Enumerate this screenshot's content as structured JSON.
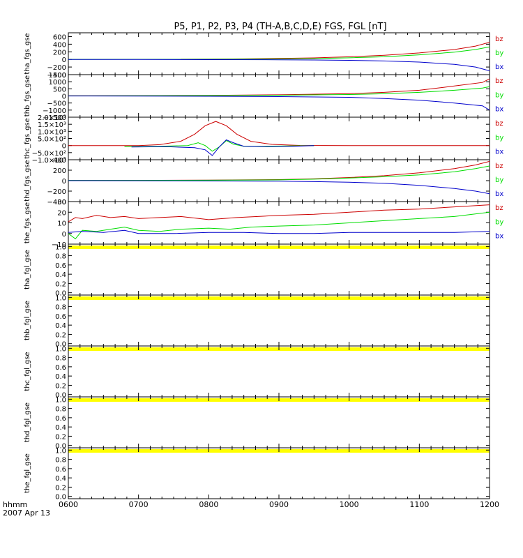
{
  "title": "P5, P1, P2, P3, P4 (TH-A,B,C,D,E) FGS, FGL [nT]",
  "footer": {
    "time_label": "hhmm",
    "date_label": "2007 Apr 13"
  },
  "colors": {
    "bx": "#0000cc",
    "by": "#00dd00",
    "bz": "#cc0000",
    "no_data": "#ffff00",
    "axis": "#000000"
  },
  "chart_data": {
    "type": "line",
    "x_axis": {
      "tick_labels": [
        "0600",
        "0700",
        "0800",
        "0900",
        "1000",
        "1100",
        "1200"
      ],
      "tick_hours": [
        6,
        7,
        8,
        9,
        10,
        11,
        12
      ],
      "range_hours": [
        6,
        12
      ]
    },
    "panels": [
      {
        "ylabel": "tha_fgs_gse",
        "ylim": [
          -400,
          700
        ],
        "tick_values": [
          -400,
          -200,
          0,
          200,
          400,
          600
        ],
        "tick_labels": [
          "−400",
          "−200",
          "0",
          "200",
          "400",
          "600"
        ],
        "series": [
          {
            "name": "bz",
            "color": "#cc0000",
            "x": [
              7.6,
              8,
              8.5,
              9,
              9.5,
              10,
              10.5,
              11,
              11.5,
              11.8,
              12
            ],
            "y": [
              5,
              8,
              15,
              25,
              40,
              70,
              110,
              170,
              260,
              350,
              450
            ]
          },
          {
            "name": "by",
            "color": "#00dd00",
            "x": [
              6,
              7,
              8,
              9,
              9.5,
              10,
              10.5,
              11,
              11.5,
              11.8,
              12
            ],
            "y": [
              2,
              4,
              6,
              12,
              22,
              42,
              70,
              120,
              190,
              260,
              330
            ]
          },
          {
            "name": "bx",
            "color": "#0000cc",
            "x": [
              6,
              7,
              8,
              9,
              9.5,
              10,
              10.5,
              11,
              11.5,
              11.8,
              12
            ],
            "y": [
              0,
              -2,
              -5,
              -10,
              -15,
              -25,
              -40,
              -70,
              -130,
              -200,
              -300
            ]
          }
        ]
      },
      {
        "ylabel": "thb_fgs_gse",
        "ylim": [
          -1500,
          1500
        ],
        "tick_values": [
          -1500,
          -1000,
          -500,
          0,
          500,
          1000,
          1500
        ],
        "tick_labels": [
          "−1500",
          "−1000",
          "−500",
          "0",
          "500",
          "1000",
          "1500"
        ],
        "series": [
          {
            "name": "bz",
            "color": "#cc0000",
            "x": [
              6,
              7,
              8,
              9,
              10,
              10.5,
              11,
              11.5,
              11.9,
              12
            ],
            "y": [
              10,
              20,
              40,
              80,
              160,
              250,
              400,
              700,
              950,
              1200
            ]
          },
          {
            "name": "by",
            "color": "#00dd00",
            "x": [
              6,
              7,
              8,
              9,
              10,
              10.5,
              11,
              11.5,
              11.9,
              12
            ],
            "y": [
              5,
              10,
              25,
              50,
              100,
              150,
              250,
              400,
              550,
              650
            ]
          },
          {
            "name": "bx",
            "color": "#0000cc",
            "x": [
              6,
              7,
              8,
              9,
              10,
              10.5,
              11,
              11.5,
              11.9,
              12
            ],
            "y": [
              -5,
              -10,
              -25,
              -50,
              -100,
              -180,
              -300,
              -500,
              -700,
              -1000
            ]
          }
        ]
      },
      {
        "ylabel": "thc_fgs_gse",
        "ylim": [
          -1000,
          2000
        ],
        "tick_values": [
          -1000,
          -500,
          0,
          500,
          1000,
          1500,
          2000
        ],
        "tick_labels": [
          "−1.0×10³",
          "−5.0×10²",
          "0",
          "5.0×10²",
          "1.0×10³",
          "1.5×10³",
          "2.0×10³"
        ],
        "series": [
          {
            "name": "bz",
            "color": "#cc0000",
            "x": [
              6,
              7,
              7.3,
              7.6,
              7.8,
              7.95,
              8.1,
              8.25,
              8.4,
              8.6,
              8.9,
              9.3,
              10,
              11,
              12
            ],
            "y": [
              0,
              0,
              60,
              300,
              800,
              1400,
              1700,
              1400,
              800,
              300,
              80,
              10,
              0,
              0,
              0
            ]
          },
          {
            "name": "by",
            "color": "#00dd00",
            "x": [
              6.8,
              7.3,
              7.7,
              7.85,
              7.95,
              8.05,
              8.15,
              8.25,
              8.35,
              8.5,
              8.8,
              9.2,
              9.5
            ],
            "y": [
              -80,
              -50,
              0,
              200,
              0,
              -400,
              -100,
              350,
              100,
              -50,
              -50,
              -20,
              0
            ]
          },
          {
            "name": "bx",
            "color": "#0000cc",
            "x": [
              6.9,
              7.4,
              7.8,
              7.95,
              8.05,
              8.15,
              8.25,
              8.35,
              8.5,
              8.8,
              9.2,
              9.5
            ],
            "y": [
              -100,
              -80,
              -150,
              -300,
              -700,
              -100,
              400,
              200,
              -50,
              -80,
              -50,
              0
            ]
          }
        ]
      },
      {
        "ylabel": "thd_fgs_gse",
        "ylim": [
          -400,
          400
        ],
        "tick_values": [
          -400,
          -200,
          0,
          200,
          400
        ],
        "tick_labels": [
          "−400",
          "−200",
          "0",
          "200",
          "400"
        ],
        "series": [
          {
            "name": "bz",
            "color": "#cc0000",
            "x": [
              6,
              7,
              8,
              9,
              9.5,
              10,
              10.5,
              11,
              11.5,
              11.8,
              12
            ],
            "y": [
              5,
              5,
              10,
              20,
              35,
              60,
              95,
              150,
              230,
              300,
              370
            ]
          },
          {
            "name": "by",
            "color": "#00dd00",
            "x": [
              6,
              7,
              8,
              9,
              9.5,
              10,
              10.5,
              11,
              11.5,
              11.8,
              12
            ],
            "y": [
              5,
              5,
              8,
              15,
              28,
              50,
              75,
              110,
              170,
              230,
              280
            ]
          },
          {
            "name": "bx",
            "color": "#0000cc",
            "x": [
              6,
              7,
              8,
              9,
              9.5,
              10,
              10.5,
              11,
              11.5,
              11.8,
              12
            ],
            "y": [
              0,
              -2,
              -5,
              -10,
              -18,
              -30,
              -50,
              -90,
              -150,
              -200,
              -250
            ]
          }
        ]
      },
      {
        "ylabel": "the_fgs_gse",
        "ylim": [
          -10,
          30
        ],
        "tick_values": [
          -10,
          0,
          10,
          20,
          30
        ],
        "tick_labels": [
          "−10",
          "0",
          "10",
          "20",
          "30"
        ],
        "series": [
          {
            "name": "bz",
            "color": "#cc0000",
            "x": [
              6,
              6.1,
              6.2,
              6.4,
              6.6,
              6.8,
              7,
              7.3,
              7.6,
              8,
              8.4,
              8.7,
              9,
              9.5,
              10,
              10.5,
              11,
              11.5,
              12
            ],
            "y": [
              11,
              15,
              14,
              17,
              15,
              16,
              14,
              15,
              16,
              13,
              15,
              16,
              17,
              18,
              20,
              22,
              23,
              25,
              27
            ]
          },
          {
            "name": "by",
            "color": "#00dd00",
            "x": [
              6,
              6.1,
              6.2,
              6.4,
              6.6,
              6.8,
              7,
              7.3,
              7.6,
              8,
              8.3,
              8.6,
              9,
              9.5,
              10,
              10.5,
              11,
              11.5,
              12
            ],
            "y": [
              0,
              -5,
              3,
              2,
              4,
              6,
              3,
              2,
              4,
              5,
              4,
              6,
              7,
              8,
              10,
              12,
              14,
              16,
              20
            ]
          },
          {
            "name": "bx",
            "color": "#0000cc",
            "x": [
              6,
              6.2,
              6.5,
              6.8,
              7,
              7.5,
              8,
              8.5,
              9,
              9.5,
              10,
              10.5,
              11,
              11.5,
              12
            ],
            "y": [
              1,
              2,
              1,
              3,
              0,
              0,
              1,
              1,
              0,
              0,
              1,
              1,
              1,
              1,
              2
            ]
          }
        ]
      },
      {
        "ylabel": "tha_fgl_gse",
        "ylim": [
          -0.05,
          1.05
        ],
        "tick_values": [
          0,
          0.2,
          0.4,
          0.6,
          0.8,
          1.0
        ],
        "tick_labels": [
          "0.0",
          "0.2",
          "0.4",
          "0.6",
          "0.8",
          "1.0"
        ],
        "no_data": true,
        "series": []
      },
      {
        "ylabel": "thb_fgl_gse",
        "ylim": [
          -0.05,
          1.05
        ],
        "tick_values": [
          0,
          0.2,
          0.4,
          0.6,
          0.8,
          1.0
        ],
        "tick_labels": [
          "0.0",
          "0.2",
          "0.4",
          "0.6",
          "0.8",
          "1.0"
        ],
        "no_data": true,
        "series": []
      },
      {
        "ylabel": "thc_fgl_gse",
        "ylim": [
          -0.05,
          1.05
        ],
        "tick_values": [
          0,
          0.2,
          0.4,
          0.6,
          0.8,
          1.0
        ],
        "tick_labels": [
          "0.0",
          "0.2",
          "0.4",
          "0.6",
          "0.8",
          "1.0"
        ],
        "no_data": true,
        "series": []
      },
      {
        "ylabel": "thd_fgl_gse",
        "ylim": [
          -0.05,
          1.05
        ],
        "tick_values": [
          0,
          0.2,
          0.4,
          0.6,
          0.8,
          1.0
        ],
        "tick_labels": [
          "0.0",
          "0.2",
          "0.4",
          "0.6",
          "0.8",
          "1.0"
        ],
        "no_data": true,
        "series": []
      },
      {
        "ylabel": "the_fgl_gse",
        "ylim": [
          -0.05,
          1.05
        ],
        "tick_values": [
          0,
          0.2,
          0.4,
          0.6,
          0.8,
          1.0
        ],
        "tick_labels": [
          "0.0",
          "0.2",
          "0.4",
          "0.6",
          "0.8",
          "1.0"
        ],
        "no_data": true,
        "series": []
      }
    ]
  }
}
